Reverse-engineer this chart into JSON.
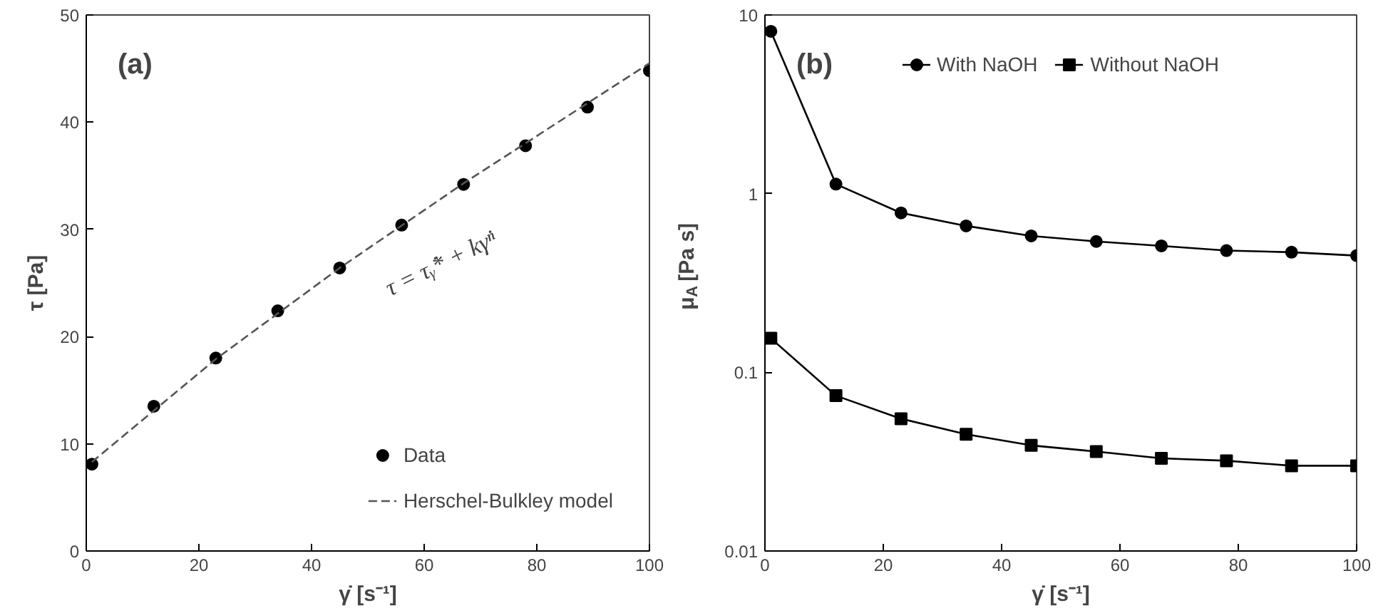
{
  "chart_data": [
    {
      "type": "scatter",
      "title": "(a)",
      "xlabel": "γ̇ [s⁻¹]",
      "ylabel": "τ [Pa]",
      "xlim": [
        0,
        100
      ],
      "ylim": [
        0,
        50
      ],
      "xticks": [
        0,
        20,
        40,
        60,
        80,
        100
      ],
      "yticks": [
        0,
        10,
        20,
        30,
        40,
        50
      ],
      "grid": false,
      "legend": "bottom right",
      "annotations": [
        "τ = τᵧ̇* + kγ̇ⁿ"
      ],
      "series": [
        {
          "name": "Data",
          "type": "scatter",
          "marker": "circle",
          "color": "#000000",
          "x": [
            1,
            12,
            23,
            34,
            45,
            56,
            67,
            78,
            89,
            100
          ],
          "values": [
            8.1,
            13.5,
            18,
            22.4,
            26.4,
            30.4,
            34.2,
            37.8,
            41.4,
            44.8
          ]
        },
        {
          "name": "Herschel-Bulkley model",
          "type": "line",
          "marker": "none",
          "line_style": "dashed",
          "color": "#555555",
          "x": [
            1,
            23,
            45,
            67,
            100
          ],
          "values": [
            8.3,
            17.9,
            26.4,
            34.3,
            45.5
          ]
        }
      ]
    },
    {
      "type": "line",
      "title": "(b)",
      "xlabel": "γ̇ [s⁻¹]",
      "ylabel": "μ$_{A}$ [Pa s]",
      "log": "y",
      "xlim": [
        0,
        100
      ],
      "ylim": [
        0.01,
        10
      ],
      "xticks": [
        0,
        20,
        40,
        60,
        80,
        100
      ],
      "yticks": [
        0.01,
        0.1,
        1,
        10
      ],
      "grid": false,
      "legend": "top",
      "x": [
        1,
        12,
        23,
        34,
        45,
        56,
        67,
        78,
        89,
        100
      ],
      "series": [
        {
          "name": "With NaOH",
          "marker": "circle",
          "color": "#000000",
          "values": [
            8.1,
            1.13,
            0.78,
            0.66,
            0.58,
            0.54,
            0.51,
            0.48,
            0.47,
            0.45
          ]
        },
        {
          "name": "Without NaOH",
          "marker": "square",
          "color": "#000000",
          "values": [
            0.155,
            0.074,
            0.055,
            0.045,
            0.039,
            0.036,
            0.033,
            0.032,
            0.03,
            0.03
          ]
        }
      ]
    }
  ]
}
